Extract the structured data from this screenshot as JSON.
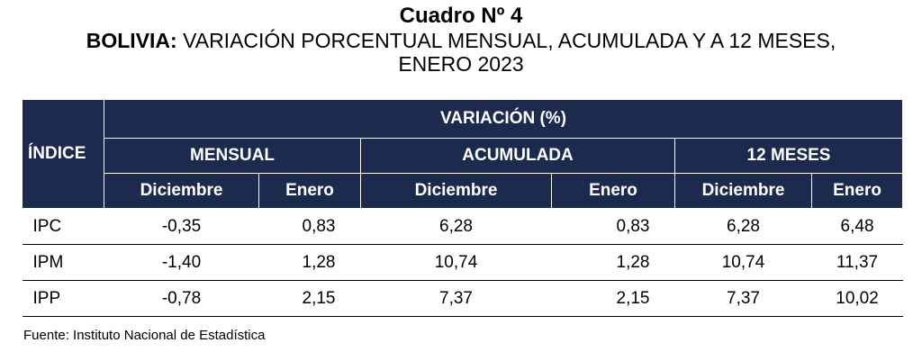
{
  "title": {
    "number": "Cuadro Nº 4",
    "country": "BOLIVIA:",
    "subtitle": "VARIACIÓN PORCENTUAL MENSUAL, ACUMULADA Y A 12 MESES,",
    "period": "ENERO 2023"
  },
  "table": {
    "index_header": "ÍNDICE",
    "variation_header": "VARIACIÓN (%)",
    "groups": [
      "MENSUAL",
      "ACUMULADA",
      "12 MESES"
    ],
    "subheaders": [
      "Diciembre",
      "Enero",
      "Diciembre",
      "Enero",
      "Diciembre",
      "Enero"
    ],
    "rows": [
      {
        "name": "IPC",
        "values": [
          "-0,35",
          "0,83",
          "6,28",
          "0,83",
          "6,28",
          "6,48"
        ]
      },
      {
        "name": "IPM",
        "values": [
          "-1,40",
          "1,28",
          "10,74",
          "1,28",
          "10,74",
          "11,37"
        ]
      },
      {
        "name": "IPP",
        "values": [
          "-0,78",
          "2,15",
          "7,37",
          "2,15",
          "7,37",
          "10,02"
        ]
      }
    ]
  },
  "source": "Fuente: Instituto Nacional de Estadística"
}
